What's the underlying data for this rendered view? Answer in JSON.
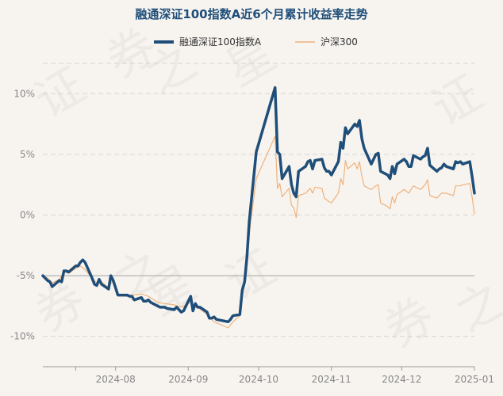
{
  "chart_data": {
    "type": "line",
    "title": "融通深证100指数A近6个月累计收益率走势",
    "xlabel": "",
    "ylabel": "",
    "ylim": [
      -12.5,
      12.5
    ],
    "y_ticks": [
      10,
      5,
      0,
      -5,
      -10
    ],
    "y_tick_labels": [
      "10%",
      "5%",
      "0%",
      "-5%",
      "-10%"
    ],
    "x_ticks": [
      "2024-07-15",
      "2024-08-01",
      "2024-09-01",
      "2024-10-01",
      "2024-11-01",
      "2024-12-01",
      "2025-01-01"
    ],
    "x_tick_labels": [
      "",
      "2024-08",
      "2024-09",
      "2024-10",
      "2024-11",
      "2024-12",
      "2025-01"
    ],
    "xlim": [
      "2024-07-01",
      "2025-01-01"
    ],
    "grid": "horizontal-dashed",
    "legend_position": "top-center",
    "reference_line": -5,
    "watermark": "证券之星",
    "series": [
      {
        "name": "融通深证100指数A",
        "color": "#1f4e79",
        "points": [
          [
            "2024-07-01",
            -5.0
          ],
          [
            "2024-07-02",
            -5.2
          ],
          [
            "2024-07-03",
            -5.4
          ],
          [
            "2024-07-04",
            -5.5
          ],
          [
            "2024-07-05",
            -5.9
          ],
          [
            "2024-07-08",
            -5.4
          ],
          [
            "2024-07-09",
            -5.5
          ],
          [
            "2024-07-10",
            -4.6
          ],
          [
            "2024-07-11",
            -4.6
          ],
          [
            "2024-07-12",
            -4.7
          ],
          [
            "2024-07-15",
            -4.2
          ],
          [
            "2024-07-16",
            -4.2
          ],
          [
            "2024-07-17",
            -3.9
          ],
          [
            "2024-07-18",
            -3.7
          ],
          [
            "2024-07-19",
            -3.9
          ],
          [
            "2024-07-22",
            -5.2
          ],
          [
            "2024-07-23",
            -5.7
          ],
          [
            "2024-07-24",
            -5.8
          ],
          [
            "2024-07-25",
            -5.3
          ],
          [
            "2024-07-26",
            -5.7
          ],
          [
            "2024-07-29",
            -6.1
          ],
          [
            "2024-07-30",
            -5.0
          ],
          [
            "2024-07-31",
            -5.4
          ],
          [
            "2024-08-01",
            -6.0
          ],
          [
            "2024-08-02",
            -6.6
          ],
          [
            "2024-08-05",
            -6.6
          ],
          [
            "2024-08-06",
            -6.6
          ],
          [
            "2024-08-07",
            -6.7
          ],
          [
            "2024-08-08",
            -6.7
          ],
          [
            "2024-08-09",
            -7.0
          ],
          [
            "2024-08-12",
            -6.8
          ],
          [
            "2024-08-13",
            -7.1
          ],
          [
            "2024-08-14",
            -7.1
          ],
          [
            "2024-08-15",
            -7.0
          ],
          [
            "2024-08-16",
            -7.2
          ],
          [
            "2024-08-19",
            -7.5
          ],
          [
            "2024-08-20",
            -7.6
          ],
          [
            "2024-08-21",
            -7.6
          ],
          [
            "2024-08-22",
            -7.6
          ],
          [
            "2024-08-23",
            -7.7
          ],
          [
            "2024-08-26",
            -7.8
          ],
          [
            "2024-08-27",
            -7.6
          ],
          [
            "2024-08-28",
            -7.8
          ],
          [
            "2024-08-29",
            -8.0
          ],
          [
            "2024-08-30",
            -7.9
          ],
          [
            "2024-09-02",
            -6.7
          ],
          [
            "2024-09-03",
            -7.9
          ],
          [
            "2024-09-04",
            -7.3
          ],
          [
            "2024-09-05",
            -7.6
          ],
          [
            "2024-09-06",
            -7.6
          ],
          [
            "2024-09-09",
            -8.0
          ],
          [
            "2024-09-10",
            -8.5
          ],
          [
            "2024-09-11",
            -8.5
          ],
          [
            "2024-09-12",
            -8.4
          ],
          [
            "2024-09-13",
            -8.6
          ],
          [
            "2024-09-18",
            -8.8
          ],
          [
            "2024-09-19",
            -8.6
          ],
          [
            "2024-09-20",
            -8.3
          ],
          [
            "2024-09-23",
            -8.2
          ],
          [
            "2024-09-24",
            -6.2
          ],
          [
            "2024-09-25",
            -5.5
          ],
          [
            "2024-09-26",
            -3.5
          ],
          [
            "2024-09-27",
            -0.5
          ],
          [
            "2024-09-30",
            5.2
          ],
          [
            "2024-10-08",
            10.5
          ],
          [
            "2024-10-09",
            5.2
          ],
          [
            "2024-10-10",
            5.0
          ],
          [
            "2024-10-11",
            3.0
          ],
          [
            "2024-10-14",
            4.0
          ],
          [
            "2024-10-15",
            2.5
          ],
          [
            "2024-10-16",
            1.8
          ],
          [
            "2024-10-17",
            1.5
          ],
          [
            "2024-10-18",
            3.6
          ],
          [
            "2024-10-21",
            4.0
          ],
          [
            "2024-10-22",
            4.4
          ],
          [
            "2024-10-23",
            4.5
          ],
          [
            "2024-10-24",
            3.8
          ],
          [
            "2024-10-25",
            4.5
          ],
          [
            "2024-10-28",
            4.6
          ],
          [
            "2024-10-29",
            3.9
          ],
          [
            "2024-10-30",
            3.6
          ],
          [
            "2024-10-31",
            3.6
          ],
          [
            "2024-11-01",
            3.3
          ],
          [
            "2024-11-04",
            4.4
          ],
          [
            "2024-11-05",
            6.0
          ],
          [
            "2024-11-06",
            5.5
          ],
          [
            "2024-11-07",
            7.2
          ],
          [
            "2024-11-08",
            6.7
          ],
          [
            "2024-11-11",
            7.5
          ],
          [
            "2024-11-12",
            7.3
          ],
          [
            "2024-11-13",
            7.8
          ],
          [
            "2024-11-14",
            6.3
          ],
          [
            "2024-11-15",
            5.5
          ],
          [
            "2024-11-18",
            4.2
          ],
          [
            "2024-11-19",
            4.6
          ],
          [
            "2024-11-20",
            5.0
          ],
          [
            "2024-11-21",
            5.1
          ],
          [
            "2024-11-22",
            3.6
          ],
          [
            "2024-11-25",
            3.3
          ],
          [
            "2024-11-26",
            3.0
          ],
          [
            "2024-11-27",
            4.0
          ],
          [
            "2024-11-28",
            3.4
          ],
          [
            "2024-11-29",
            4.2
          ],
          [
            "2024-12-02",
            4.6
          ],
          [
            "2024-12-03",
            4.4
          ],
          [
            "2024-12-04",
            4.0
          ],
          [
            "2024-12-05",
            4.0
          ],
          [
            "2024-12-06",
            4.9
          ],
          [
            "2024-12-09",
            4.6
          ],
          [
            "2024-12-10",
            4.8
          ],
          [
            "2024-12-11",
            4.9
          ],
          [
            "2024-12-12",
            5.5
          ],
          [
            "2024-12-13",
            4.1
          ],
          [
            "2024-12-16",
            3.6
          ],
          [
            "2024-12-17",
            3.8
          ],
          [
            "2024-12-18",
            3.9
          ],
          [
            "2024-12-19",
            4.2
          ],
          [
            "2024-12-20",
            4.0
          ],
          [
            "2024-12-23",
            3.8
          ],
          [
            "2024-12-24",
            4.4
          ],
          [
            "2024-12-25",
            4.3
          ],
          [
            "2024-12-26",
            4.4
          ],
          [
            "2024-12-27",
            4.2
          ],
          [
            "2024-12-30",
            4.4
          ],
          [
            "2024-12-31",
            3.2
          ],
          [
            "2025-01-01",
            1.8
          ]
        ]
      },
      {
        "name": "沪深300",
        "color": "#f0b27a",
        "points": [
          [
            "2024-07-01",
            -5.0
          ],
          [
            "2024-07-03",
            -5.2
          ],
          [
            "2024-07-05",
            -5.6
          ],
          [
            "2024-07-08",
            -5.3
          ],
          [
            "2024-07-10",
            -4.7
          ],
          [
            "2024-07-12",
            -4.8
          ],
          [
            "2024-07-15",
            -4.4
          ],
          [
            "2024-07-17",
            -4.2
          ],
          [
            "2024-07-19",
            -4.5
          ],
          [
            "2024-07-22",
            -5.2
          ],
          [
            "2024-07-24",
            -5.6
          ],
          [
            "2024-07-26",
            -5.5
          ],
          [
            "2024-07-29",
            -6.0
          ],
          [
            "2024-07-31",
            -5.3
          ],
          [
            "2024-08-02",
            -6.6
          ],
          [
            "2024-08-06",
            -6.7
          ],
          [
            "2024-08-08",
            -6.6
          ],
          [
            "2024-08-12",
            -6.5
          ],
          [
            "2024-08-15",
            -6.7
          ],
          [
            "2024-08-19",
            -7.2
          ],
          [
            "2024-08-22",
            -7.3
          ],
          [
            "2024-08-26",
            -7.4
          ],
          [
            "2024-08-29",
            -7.6
          ],
          [
            "2024-09-02",
            -7.2
          ],
          [
            "2024-09-05",
            -7.6
          ],
          [
            "2024-09-09",
            -8.2
          ],
          [
            "2024-09-12",
            -8.8
          ],
          [
            "2024-09-18",
            -9.3
          ],
          [
            "2024-09-20",
            -8.8
          ],
          [
            "2024-09-23",
            -8.3
          ],
          [
            "2024-09-24",
            -6.4
          ],
          [
            "2024-09-26",
            -3.8
          ],
          [
            "2024-09-27",
            -1.5
          ],
          [
            "2024-09-30",
            3.0
          ],
          [
            "2024-10-08",
            6.5
          ],
          [
            "2024-10-09",
            2.2
          ],
          [
            "2024-10-10",
            2.6
          ],
          [
            "2024-10-11",
            1.5
          ],
          [
            "2024-10-14",
            2.2
          ],
          [
            "2024-10-15",
            0.8
          ],
          [
            "2024-10-16",
            0.6
          ],
          [
            "2024-10-17",
            -0.2
          ],
          [
            "2024-10-18",
            1.6
          ],
          [
            "2024-10-21",
            1.8
          ],
          [
            "2024-10-23",
            2.2
          ],
          [
            "2024-10-24",
            1.8
          ],
          [
            "2024-10-25",
            2.3
          ],
          [
            "2024-10-28",
            2.2
          ],
          [
            "2024-10-29",
            1.4
          ],
          [
            "2024-10-31",
            1.1
          ],
          [
            "2024-11-01",
            1.0
          ],
          [
            "2024-11-04",
            1.8
          ],
          [
            "2024-11-05",
            3.0
          ],
          [
            "2024-11-06",
            2.5
          ],
          [
            "2024-11-07",
            4.5
          ],
          [
            "2024-11-08",
            3.8
          ],
          [
            "2024-11-11",
            4.3
          ],
          [
            "2024-11-12",
            3.8
          ],
          [
            "2024-11-13",
            4.4
          ],
          [
            "2024-11-14",
            3.2
          ],
          [
            "2024-11-15",
            2.4
          ],
          [
            "2024-11-18",
            2.1
          ],
          [
            "2024-11-20",
            2.4
          ],
          [
            "2024-11-21",
            2.5
          ],
          [
            "2024-11-22",
            1.0
          ],
          [
            "2024-11-25",
            0.7
          ],
          [
            "2024-11-26",
            0.5
          ],
          [
            "2024-11-27",
            1.5
          ],
          [
            "2024-11-28",
            1.0
          ],
          [
            "2024-11-29",
            1.7
          ],
          [
            "2024-12-02",
            2.1
          ],
          [
            "2024-12-04",
            1.8
          ],
          [
            "2024-12-06",
            2.4
          ],
          [
            "2024-12-09",
            2.1
          ],
          [
            "2024-12-10",
            2.3
          ],
          [
            "2024-12-11",
            2.5
          ],
          [
            "2024-12-12",
            2.9
          ],
          [
            "2024-12-13",
            1.6
          ],
          [
            "2024-12-16",
            1.4
          ],
          [
            "2024-12-18",
            1.8
          ],
          [
            "2024-12-20",
            1.8
          ],
          [
            "2024-12-23",
            1.6
          ],
          [
            "2024-12-24",
            2.4
          ],
          [
            "2024-12-26",
            2.4
          ],
          [
            "2024-12-27",
            2.5
          ],
          [
            "2024-12-30",
            2.6
          ],
          [
            "2024-12-31",
            1.5
          ],
          [
            "2025-01-01",
            0.1
          ]
        ]
      }
    ]
  }
}
